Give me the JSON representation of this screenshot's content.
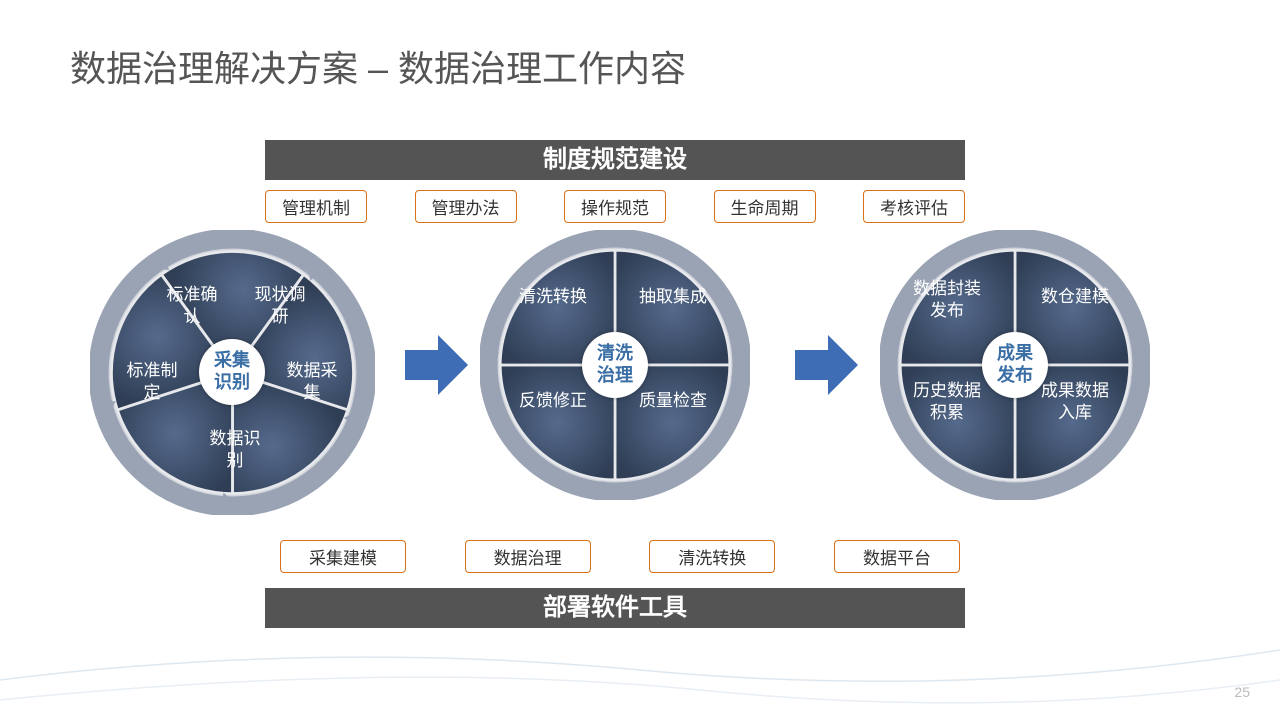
{
  "title": "数据治理解决方案 – 数据治理工作内容",
  "banner_top": "制度规范建设",
  "banner_bot": "部署软件工具",
  "tags_top": [
    "管理机制",
    "管理办法",
    "操作规范",
    "生命周期",
    "考核评估"
  ],
  "tags_bot": [
    "采集建模",
    "数据治理",
    "清洗转换",
    "数据平台"
  ],
  "wheel1": {
    "hub": "采集\n识别",
    "segs": [
      "标准确\n认",
      "现状调\n研",
      "数据采\n集",
      "数据识\n别",
      "标准制\n定"
    ]
  },
  "wheel2": {
    "hub": "清洗\n治理",
    "segs": [
      "清洗转换",
      "抽取集成",
      "质量检查",
      "反馈修正"
    ]
  },
  "wheel3": {
    "hub": "成果\n发布",
    "segs": [
      "数据封装\n发布",
      "数仓建模",
      "成果数据\n入库",
      "历史数据\n积累"
    ]
  },
  "colors": {
    "banner": "#545454",
    "tag_border": "#d8711a",
    "hub_text": "#3a6ea5",
    "seg_fill": "#3d4f6a",
    "seg_stroke": "#b8bec8",
    "arrow": "#3e6db5"
  },
  "page": "25"
}
